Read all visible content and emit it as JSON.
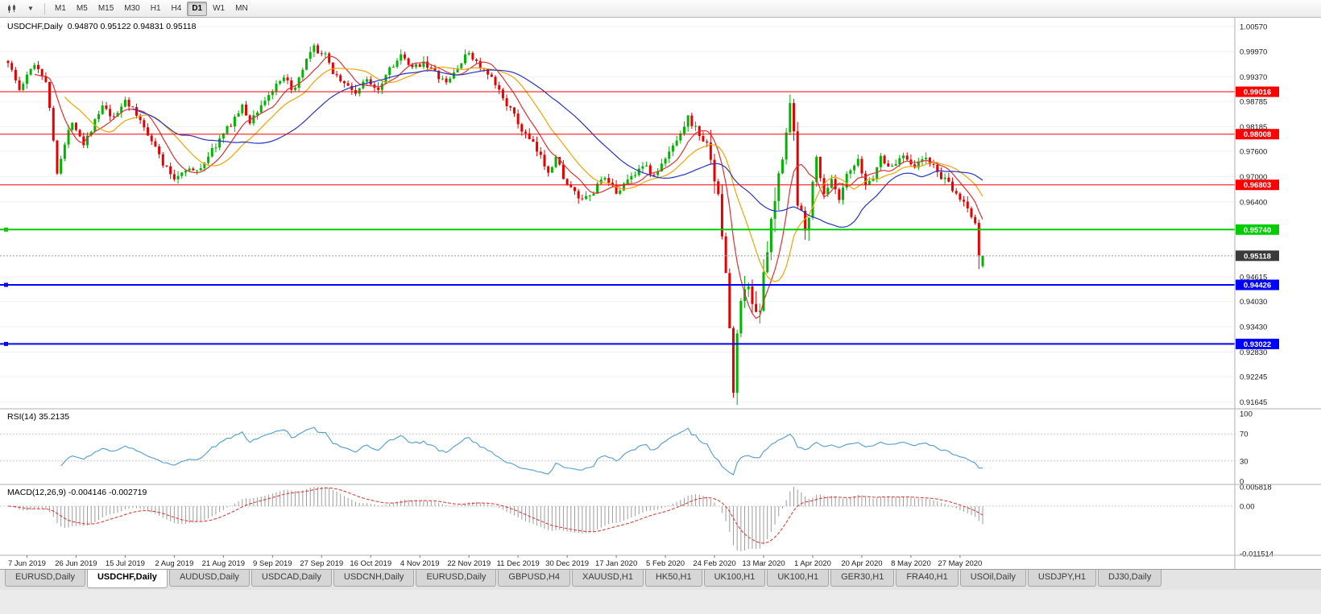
{
  "app": {
    "name": "MetaTrader chart window"
  },
  "toolbar": {
    "timeframes": [
      {
        "label": "M1"
      },
      {
        "label": "M5"
      },
      {
        "label": "M15"
      },
      {
        "label": "M30"
      },
      {
        "label": "H1"
      },
      {
        "label": "H4"
      },
      {
        "label": "D1",
        "active": true
      },
      {
        "label": "W1"
      },
      {
        "label": "MN"
      }
    ]
  },
  "chart": {
    "symbol_title": "USDCHF,Daily",
    "ohlc_text": "0.94870 0.95122 0.94831 0.95118"
  },
  "chart_data": {
    "type": "candlestick",
    "symbol": "USDCHF",
    "timeframe": "Daily",
    "last_bar": {
      "open": 0.9487,
      "high": 0.95122,
      "low": 0.94831,
      "close": 0.95118
    },
    "candle_count": 259,
    "seed": 1337,
    "base_volatility": 0.0016,
    "crash_range": [
      186,
      212
    ],
    "crash_vol_multiplier": 2.6,
    "price_path_anchors": [
      [
        0,
        0.9975
      ],
      [
        3,
        0.9905
      ],
      [
        7,
        0.997
      ],
      [
        10,
        0.993
      ],
      [
        13,
        0.9715
      ],
      [
        17,
        0.9835
      ],
      [
        20,
        0.978
      ],
      [
        25,
        0.9865
      ],
      [
        28,
        0.9835
      ],
      [
        31,
        0.9885
      ],
      [
        34,
        0.9845
      ],
      [
        38,
        0.979
      ],
      [
        41,
        0.973
      ],
      [
        44,
        0.9695
      ],
      [
        47,
        0.972
      ],
      [
        50,
        0.971
      ],
      [
        53,
        0.975
      ],
      [
        57,
        0.98
      ],
      [
        60,
        0.984
      ],
      [
        62,
        0.9865
      ],
      [
        64,
        0.983
      ],
      [
        67,
        0.987
      ],
      [
        70,
        0.9905
      ],
      [
        73,
        0.993
      ],
      [
        76,
        0.9905
      ],
      [
        79,
        0.9975
      ],
      [
        81,
        1.0005
      ],
      [
        84,
        0.9985
      ],
      [
        86,
        0.995
      ],
      [
        89,
        0.992
      ],
      [
        92,
        0.99
      ],
      [
        95,
        0.993
      ],
      [
        98,
        0.991
      ],
      [
        101,
        0.996
      ],
      [
        104,
        0.9985
      ],
      [
        107,
        0.9955
      ],
      [
        110,
        0.9975
      ],
      [
        113,
        0.9945
      ],
      [
        116,
        0.992
      ],
      [
        119,
        0.996
      ],
      [
        122,
        0.9995
      ],
      [
        125,
        0.996
      ],
      [
        128,
        0.993
      ],
      [
        132,
        0.9875
      ],
      [
        136,
        0.981
      ],
      [
        139,
        0.9775
      ],
      [
        141,
        0.9745
      ],
      [
        143,
        0.9715
      ],
      [
        145,
        0.9745
      ],
      [
        148,
        0.968
      ],
      [
        152,
        0.964
      ],
      [
        155,
        0.966
      ],
      [
        157,
        0.97
      ],
      [
        159,
        0.968
      ],
      [
        161,
        0.9665
      ],
      [
        164,
        0.969
      ],
      [
        168,
        0.973
      ],
      [
        171,
        0.97
      ],
      [
        174,
        0.974
      ],
      [
        176,
        0.9775
      ],
      [
        180,
        0.984
      ],
      [
        183,
        0.98
      ],
      [
        186,
        0.976
      ],
      [
        188,
        0.964
      ],
      [
        190,
        0.948
      ],
      [
        192,
        0.9185
      ],
      [
        193,
        0.933
      ],
      [
        195,
        0.945
      ],
      [
        197,
        0.94
      ],
      [
        199,
        0.939
      ],
      [
        201,
        0.952
      ],
      [
        203,
        0.964
      ],
      [
        205,
        0.976
      ],
      [
        207,
        0.9875
      ],
      [
        208,
        0.98
      ],
      [
        209,
        0.963
      ],
      [
        211,
        0.959
      ],
      [
        212,
        0.962
      ],
      [
        214,
        0.9745
      ],
      [
        216,
        0.966
      ],
      [
        218,
        0.969
      ],
      [
        220,
        0.964
      ],
      [
        222,
        0.97
      ],
      [
        225,
        0.9735
      ],
      [
        227,
        0.968
      ],
      [
        229,
        0.97
      ],
      [
        231,
        0.9745
      ],
      [
        234,
        0.972
      ],
      [
        237,
        0.9755
      ],
      [
        240,
        0.9725
      ],
      [
        243,
        0.9745
      ],
      [
        246,
        0.971
      ],
      [
        249,
        0.968
      ],
      [
        251,
        0.9655
      ],
      [
        253,
        0.964
      ],
      [
        255,
        0.9605
      ],
      [
        256,
        0.959
      ],
      [
        258,
        0.9512
      ]
    ],
    "final_candles": [
      [
        0.959,
        0.9598,
        0.948,
        0.9513
      ],
      [
        0.9487,
        0.95122,
        0.94831,
        0.95118
      ]
    ],
    "candle_colors": {
      "up": "#00B400",
      "down": "#E60000"
    },
    "moving_averages": [
      {
        "period": 8,
        "color": "#E03030"
      },
      {
        "period": 16,
        "color": "#F5A300"
      },
      {
        "period": 34,
        "color": "#2433C4"
      }
    ],
    "y_axis": {
      "ylim": [
        0.9148,
        1.007
      ],
      "labels": [
        "1.00570",
        "0.99970",
        "0.99370",
        "0.98785",
        "0.98185",
        "0.97600",
        "0.97000",
        "0.96400",
        "0.94615",
        "0.94030",
        "0.93430",
        "0.92830",
        "0.92245",
        "0.91645"
      ]
    },
    "levels": [
      {
        "price": 0.99016,
        "label": "0.99016",
        "color": "#FF0000",
        "width": 1,
        "handles": false
      },
      {
        "price": 0.98008,
        "label": "0.98008",
        "color": "#FF0000",
        "width": 1,
        "handles": false
      },
      {
        "price": 0.96803,
        "label": "0.96803",
        "color": "#FF0000",
        "width": 1,
        "handles": false
      },
      {
        "price": 0.9574,
        "label": "0.95740",
        "color": "#00CC00",
        "width": 2,
        "handles": true
      },
      {
        "price": 0.94426,
        "label": "0.94426",
        "color": "#0000FF",
        "width": 2,
        "handles": true
      },
      {
        "price": 0.93022,
        "label": "0.93022",
        "color": "#0000FF",
        "width": 2,
        "handles": true
      }
    ],
    "current_price": {
      "value": 0.95118,
      "label": "0.95118",
      "badge_color": "#3A3A3A"
    },
    "x_axis": {
      "labels": [
        "7 Jun 2019",
        "26 Jun 2019",
        "15 Jul 2019",
        "2 Aug 2019",
        "21 Aug 2019",
        "9 Sep 2019",
        "27 Sep 2019",
        "16 Oct 2019",
        "4 Nov 2019",
        "22 Nov 2019",
        "11 Dec 2019",
        "30 Dec 2019",
        "17 Jan 2020",
        "5 Feb 2020",
        "24 Feb 2020",
        "13 Mar 2020",
        "1 Apr 2020",
        "20 Apr 2020",
        "8 May 2020",
        "27 May 2020"
      ],
      "first_index": 5,
      "step": 13
    },
    "rsi": {
      "label": "RSI(14) 35.2135",
      "period": 14,
      "current": "35.2135",
      "axis_labels": [
        "100",
        "70",
        "30",
        "0"
      ],
      "guide_levels": [
        70,
        30
      ],
      "line_color": "#4E9CD0"
    },
    "macd": {
      "label": "MACD(12,26,9) -0.004146 -0.002719",
      "fast": 12,
      "slow": 26,
      "signal": 9,
      "values_text": [
        "-0.004146",
        "-0.002719"
      ],
      "axis_labels": [
        "0.005818",
        "0.00",
        "-0.011514"
      ],
      "hist_color": "#9C9C9C",
      "signal_color": "#E03030"
    }
  },
  "tabbar": {
    "tabs": [
      {
        "label": "EURUSD,Daily"
      },
      {
        "label": "USDCHF,Daily",
        "active": true
      },
      {
        "label": "AUDUSD,Daily"
      },
      {
        "label": "USDCAD,Daily"
      },
      {
        "label": "USDCNH,Daily"
      },
      {
        "label": "EURUSD,Daily"
      },
      {
        "label": "GBPUSD,H4"
      },
      {
        "label": "XAUUSD,H1"
      },
      {
        "label": "HK50,H1"
      },
      {
        "label": "UK100,H1"
      },
      {
        "label": "UK100,H1"
      },
      {
        "label": "GER30,H1"
      },
      {
        "label": "FRA40,H1"
      },
      {
        "label": "USOil,Daily"
      },
      {
        "label": "USDJPY,H1"
      },
      {
        "label": "DJ30,Daily"
      }
    ]
  }
}
